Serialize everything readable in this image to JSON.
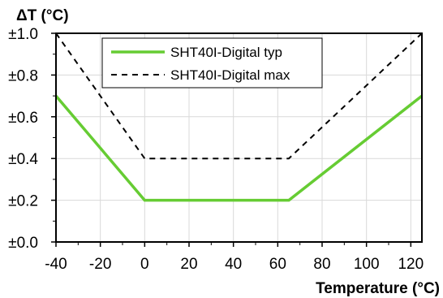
{
  "chart_data": {
    "type": "line",
    "ylabel": "ΔT (°C)",
    "xlabel": "Temperature (°C)",
    "xlim": [
      -40,
      125
    ],
    "ylim": [
      0,
      1
    ],
    "x_ticks": [
      -40,
      -20,
      0,
      20,
      40,
      60,
      80,
      100,
      120
    ],
    "x_tick_labels": [
      "-40",
      "-20",
      "0",
      "20",
      "40",
      "60",
      "80",
      "100",
      "120"
    ],
    "y_ticks": [
      0,
      0.2,
      0.4,
      0.6,
      0.8,
      1.0
    ],
    "y_tick_labels": [
      "±0.0",
      "±0.2",
      "±0.4",
      "±0.6",
      "±0.8",
      "±1.0"
    ],
    "grid": true,
    "legend_position": "top-center",
    "series": [
      {
        "name": "SHT40I-Digital typ",
        "style": "solid",
        "color": "#66CC33",
        "x": [
          -40,
          0,
          65,
          125
        ],
        "y": [
          0.7,
          0.2,
          0.2,
          0.7
        ]
      },
      {
        "name": "SHT40I-Digital max",
        "style": "dashed",
        "color": "#000000",
        "x": [
          -40,
          0,
          65,
          125
        ],
        "y": [
          1.0,
          0.4,
          0.4,
          1.0
        ]
      }
    ]
  }
}
